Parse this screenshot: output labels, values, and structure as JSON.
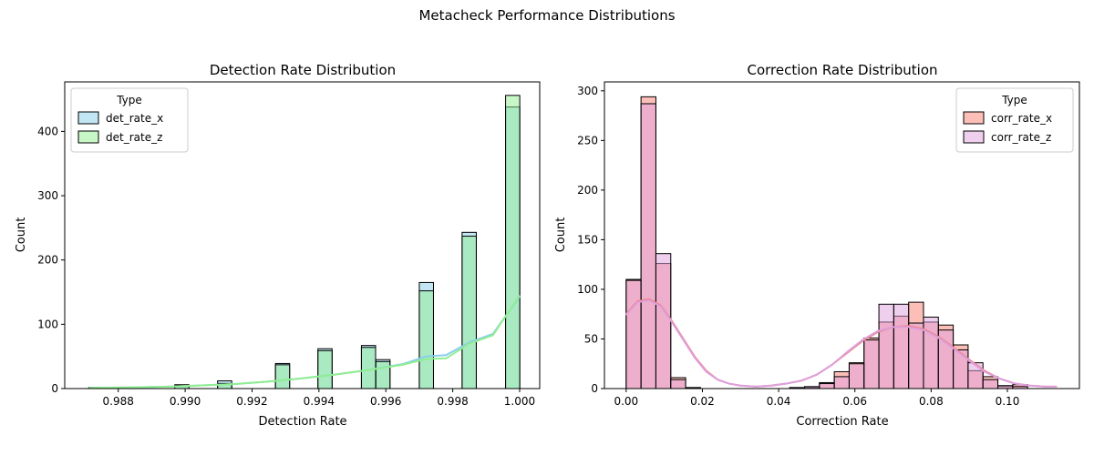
{
  "figure": {
    "title": "Metacheck Performance Distributions"
  },
  "chart_data": [
    {
      "type": "histogram",
      "title": "Detection Rate Distribution",
      "xlabel": "Detection Rate",
      "ylabel": "Count",
      "xlim": [
        0.9864,
        1.0006
      ],
      "ylim": [
        0,
        477
      ],
      "x_ticks": [
        0.988,
        0.99,
        0.992,
        0.994,
        0.996,
        0.998,
        1.0
      ],
      "x_tick_labels": [
        "0.988",
        "0.990",
        "0.992",
        "0.994",
        "0.996",
        "0.998",
        "1.000"
      ],
      "y_ticks": [
        0,
        100,
        200,
        300,
        400
      ],
      "y_tick_labels": [
        "0",
        "100",
        "200",
        "300",
        "400"
      ],
      "bin_width": 0.000424,
      "legend": {
        "title": "Type",
        "placement": "upper-left"
      },
      "series": [
        {
          "name": "det_rate_x",
          "color": "#87ceeb",
          "kde_color": "#87ceeb",
          "bins": [
            {
              "x0": 0.98712,
              "count": 2
            },
            {
              "x0": 0.98969,
              "count": 6
            },
            {
              "x0": 0.99097,
              "count": 12
            },
            {
              "x0": 0.9927,
              "count": 39
            },
            {
              "x0": 0.99397,
              "count": 62
            },
            {
              "x0": 0.99527,
              "count": 67
            },
            {
              "x0": 0.9957,
              "count": 45
            },
            {
              "x0": 0.997,
              "count": 165
            },
            {
              "x0": 0.99828,
              "count": 243
            },
            {
              "x0": 0.99958,
              "count": 438
            }
          ],
          "kde": [
            [
              0.98712,
              1
            ],
            [
              0.9885,
              2
            ],
            [
              0.9895,
              3
            ],
            [
              0.9905,
              5
            ],
            [
              0.9915,
              7
            ],
            [
              0.9925,
              11
            ],
            [
              0.9935,
              16
            ],
            [
              0.9945,
              22
            ],
            [
              0.9955,
              29
            ],
            [
              0.9965,
              38
            ],
            [
              0.9972,
              50
            ],
            [
              0.9978,
              52
            ],
            [
              0.9985,
              72
            ],
            [
              0.9992,
              85
            ],
            [
              1.0,
              143
            ]
          ]
        },
        {
          "name": "det_rate_z",
          "color": "#90ee90",
          "kde_color": "#90ee90",
          "bins": [
            {
              "x0": 0.98712,
              "count": 1
            },
            {
              "x0": 0.98969,
              "count": 5
            },
            {
              "x0": 0.99097,
              "count": 8
            },
            {
              "x0": 0.9927,
              "count": 37
            },
            {
              "x0": 0.99397,
              "count": 59
            },
            {
              "x0": 0.99527,
              "count": 64
            },
            {
              "x0": 0.9957,
              "count": 42
            },
            {
              "x0": 0.997,
              "count": 152
            },
            {
              "x0": 0.99828,
              "count": 237
            },
            {
              "x0": 0.99958,
              "count": 456
            }
          ],
          "kde": [
            [
              0.98712,
              1
            ],
            [
              0.9885,
              2
            ],
            [
              0.9895,
              3
            ],
            [
              0.9905,
              5
            ],
            [
              0.9915,
              7
            ],
            [
              0.9925,
              11
            ],
            [
              0.9935,
              16
            ],
            [
              0.9945,
              22
            ],
            [
              0.9955,
              29
            ],
            [
              0.9965,
              37
            ],
            [
              0.9972,
              46
            ],
            [
              0.9978,
              47
            ],
            [
              0.9985,
              70
            ],
            [
              0.9992,
              83
            ],
            [
              1.0,
              145
            ]
          ]
        }
      ]
    },
    {
      "type": "histogram",
      "title": "Correction Rate Distribution",
      "xlabel": "Correction Rate",
      "ylabel": "Count",
      "xlim": [
        -0.0057,
        0.1189
      ],
      "ylim": [
        0,
        309
      ],
      "x_ticks": [
        0.0,
        0.02,
        0.04,
        0.06,
        0.08,
        0.1
      ],
      "x_tick_labels": [
        "0.00",
        "0.02",
        "0.04",
        "0.06",
        "0.08",
        "0.10"
      ],
      "y_ticks": [
        0,
        50,
        100,
        150,
        200,
        250,
        300
      ],
      "y_tick_labels": [
        "0",
        "50",
        "100",
        "150",
        "200",
        "250",
        "300"
      ],
      "bin_width": 0.0039,
      "legend": {
        "title": "Type",
        "placement": "upper-right"
      },
      "series": [
        {
          "name": "corr_rate_x",
          "color": "#fa8072",
          "kde_color": "#f08080",
          "bins": [
            {
              "x0": 0.0,
              "count": 110
            },
            {
              "x0": 0.0039,
              "count": 294
            },
            {
              "x0": 0.0078,
              "count": 126
            },
            {
              "x0": 0.0117,
              "count": 11
            },
            {
              "x0": 0.0156,
              "count": 1
            },
            {
              "x0": 0.0429,
              "count": 1
            },
            {
              "x0": 0.0468,
              "count": 1
            },
            {
              "x0": 0.0507,
              "count": 6
            },
            {
              "x0": 0.0546,
              "count": 17
            },
            {
              "x0": 0.0585,
              "count": 26
            },
            {
              "x0": 0.0624,
              "count": 51
            },
            {
              "x0": 0.0663,
              "count": 67
            },
            {
              "x0": 0.0702,
              "count": 73
            },
            {
              "x0": 0.0741,
              "count": 87
            },
            {
              "x0": 0.078,
              "count": 67
            },
            {
              "x0": 0.0819,
              "count": 64
            },
            {
              "x0": 0.0858,
              "count": 44
            },
            {
              "x0": 0.0897,
              "count": 18
            },
            {
              "x0": 0.0936,
              "count": 12
            },
            {
              "x0": 0.0975,
              "count": 2
            },
            {
              "x0": 0.1014,
              "count": 4
            }
          ],
          "kde": [
            [
              0.0,
              75
            ],
            [
              0.003,
              88
            ],
            [
              0.006,
              90
            ],
            [
              0.009,
              84
            ],
            [
              0.012,
              68
            ],
            [
              0.015,
              50
            ],
            [
              0.018,
              32
            ],
            [
              0.021,
              18
            ],
            [
              0.024,
              9
            ],
            [
              0.027,
              5
            ],
            [
              0.03,
              3
            ],
            [
              0.034,
              2
            ],
            [
              0.038,
              3
            ],
            [
              0.042,
              5
            ],
            [
              0.046,
              8
            ],
            [
              0.05,
              14
            ],
            [
              0.054,
              24
            ],
            [
              0.058,
              36
            ],
            [
              0.062,
              48
            ],
            [
              0.066,
              57
            ],
            [
              0.07,
              62
            ],
            [
              0.074,
              63
            ],
            [
              0.078,
              60
            ],
            [
              0.082,
              52
            ],
            [
              0.086,
              41
            ],
            [
              0.09,
              29
            ],
            [
              0.094,
              18
            ],
            [
              0.098,
              10
            ],
            [
              0.102,
              5
            ],
            [
              0.106,
              3
            ],
            [
              0.11,
              2
            ],
            [
              0.113,
              2
            ]
          ]
        },
        {
          "name": "corr_rate_z",
          "color": "#dda0dd",
          "kde_color": "#dda0dd",
          "bins": [
            {
              "x0": 0.0,
              "count": 109
            },
            {
              "x0": 0.0039,
              "count": 287
            },
            {
              "x0": 0.0078,
              "count": 136
            },
            {
              "x0": 0.0117,
              "count": 9
            },
            {
              "x0": 0.0156,
              "count": 1
            },
            {
              "x0": 0.0429,
              "count": 1
            },
            {
              "x0": 0.0468,
              "count": 2
            },
            {
              "x0": 0.0507,
              "count": 5
            },
            {
              "x0": 0.0546,
              "count": 12
            },
            {
              "x0": 0.0585,
              "count": 25
            },
            {
              "x0": 0.0624,
              "count": 49
            },
            {
              "x0": 0.0663,
              "count": 85
            },
            {
              "x0": 0.0702,
              "count": 85
            },
            {
              "x0": 0.0741,
              "count": 66
            },
            {
              "x0": 0.078,
              "count": 72
            },
            {
              "x0": 0.0819,
              "count": 59
            },
            {
              "x0": 0.0858,
              "count": 39
            },
            {
              "x0": 0.0897,
              "count": 26
            },
            {
              "x0": 0.0936,
              "count": 9
            },
            {
              "x0": 0.0975,
              "count": 3
            },
            {
              "x0": 0.1014,
              "count": 2
            }
          ],
          "kde": [
            [
              0.0,
              74
            ],
            [
              0.003,
              87
            ],
            [
              0.006,
              89
            ],
            [
              0.009,
              83
            ],
            [
              0.012,
              67
            ],
            [
              0.015,
              49
            ],
            [
              0.018,
              31
            ],
            [
              0.021,
              17
            ],
            [
              0.024,
              9
            ],
            [
              0.027,
              5
            ],
            [
              0.03,
              3
            ],
            [
              0.034,
              2
            ],
            [
              0.038,
              3
            ],
            [
              0.042,
              5
            ],
            [
              0.046,
              8
            ],
            [
              0.05,
              14
            ],
            [
              0.054,
              24
            ],
            [
              0.058,
              37
            ],
            [
              0.062,
              49
            ],
            [
              0.066,
              58
            ],
            [
              0.07,
              62
            ],
            [
              0.074,
              62
            ],
            [
              0.078,
              59
            ],
            [
              0.082,
              51
            ],
            [
              0.086,
              40
            ],
            [
              0.09,
              28
            ],
            [
              0.094,
              17
            ],
            [
              0.098,
              10
            ],
            [
              0.102,
              5
            ],
            [
              0.106,
              3
            ],
            [
              0.11,
              2
            ],
            [
              0.113,
              2
            ]
          ]
        }
      ]
    }
  ]
}
